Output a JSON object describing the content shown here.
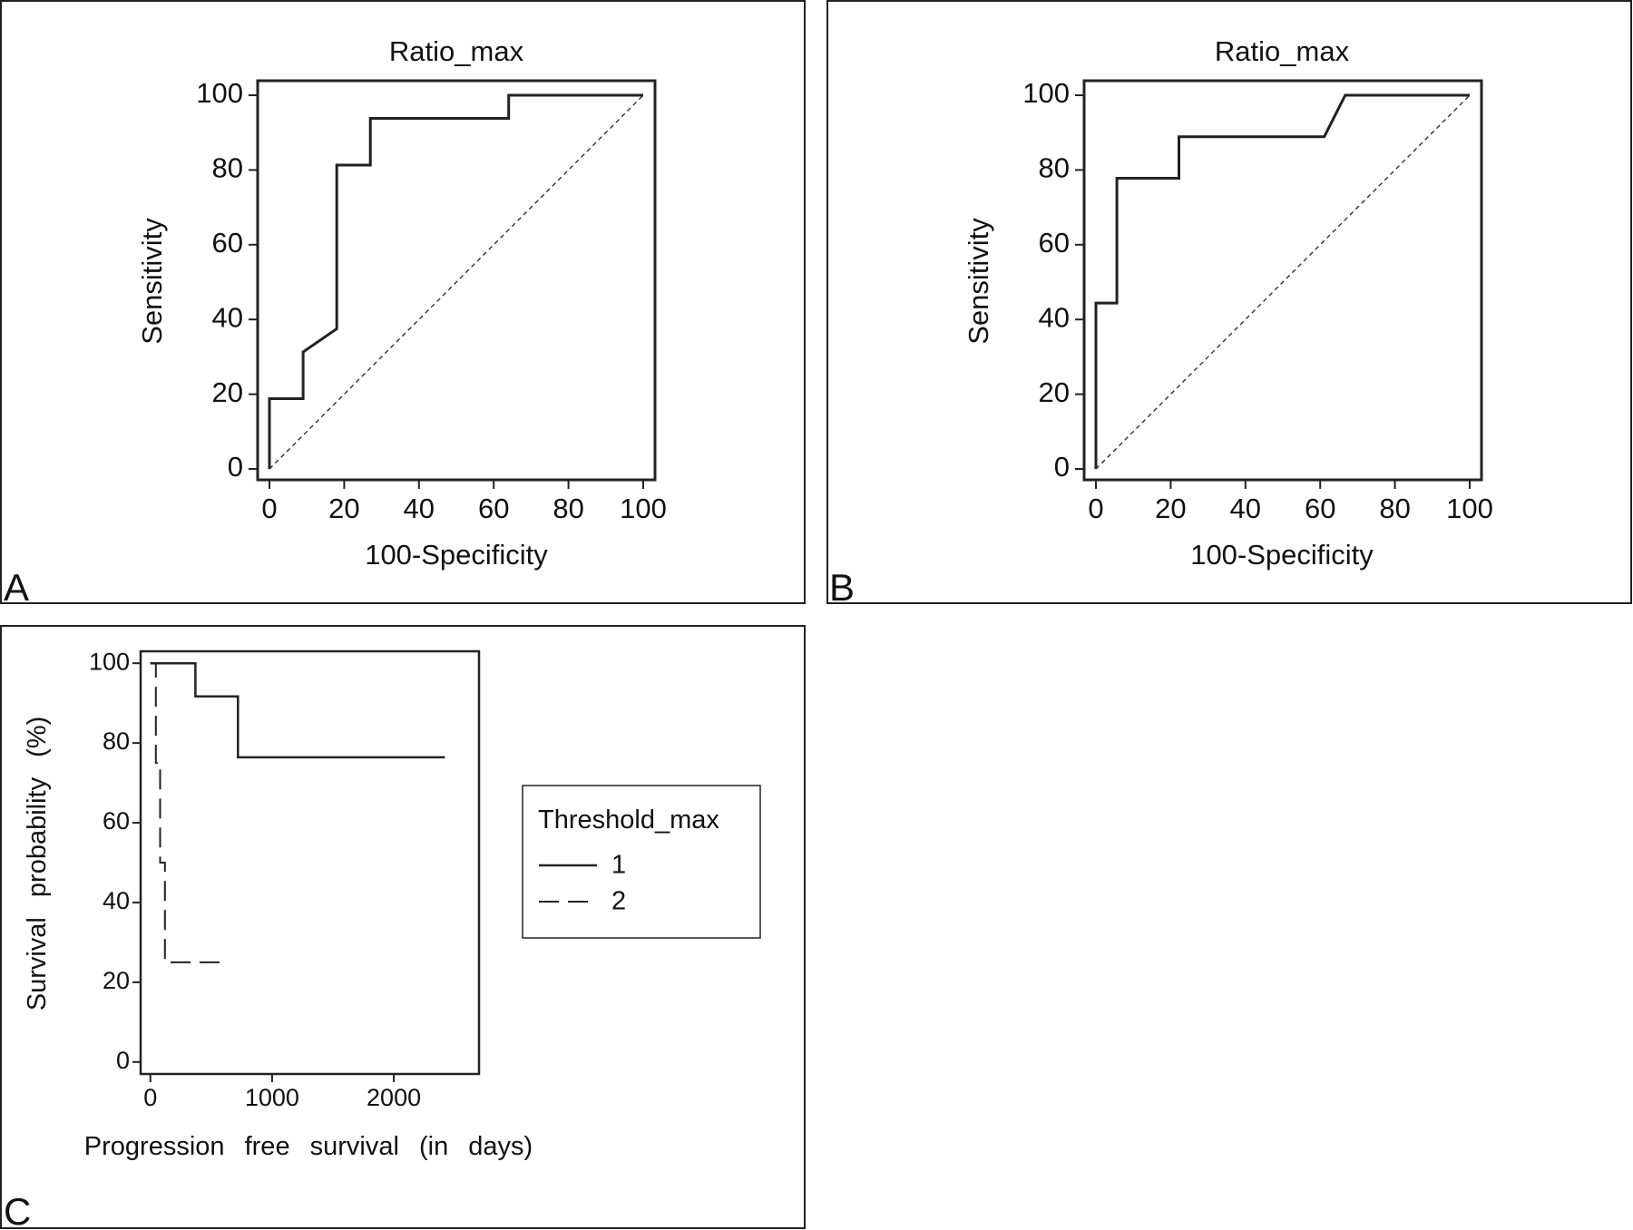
{
  "chart_data": [
    {
      "panel": "A",
      "type": "line",
      "title": "Ratio_max",
      "xlabel": "100-Specificity",
      "ylabel": "Sensitivity",
      "xlim": [
        0,
        100
      ],
      "ylim": [
        0,
        100
      ],
      "xticks": [
        "0",
        "20",
        "40",
        "60",
        "80",
        "100"
      ],
      "yticks": [
        "0",
        "20",
        "40",
        "60",
        "80",
        "100"
      ],
      "series": [
        {
          "style": "solid",
          "x": [
            0,
            0,
            9,
            9,
            18,
            18,
            27,
            27,
            64,
            64,
            100
          ],
          "y": [
            0,
            18.8,
            18.8,
            31.3,
            37.5,
            81.3,
            81.3,
            93.8,
            93.8,
            100,
            100
          ]
        },
        {
          "style": "dotted",
          "x": [
            0,
            100
          ],
          "y": [
            0,
            100
          ]
        }
      ],
      "grid": false
    },
    {
      "panel": "B",
      "type": "line",
      "title": "Ratio_max",
      "xlabel": "100-Specificity",
      "ylabel": "Sensitivity",
      "xlim": [
        0,
        100
      ],
      "ylim": [
        0,
        100
      ],
      "xticks": [
        "0",
        "20",
        "40",
        "60",
        "80",
        "100"
      ],
      "yticks": [
        "0",
        "20",
        "40",
        "60",
        "80",
        "100"
      ],
      "series": [
        {
          "style": "solid",
          "x": [
            0,
            0,
            5.6,
            5.6,
            22.2,
            22.2,
            61.1,
            66.7,
            100
          ],
          "y": [
            0,
            44.4,
            44.4,
            77.8,
            77.8,
            88.9,
            88.9,
            100,
            100
          ]
        },
        {
          "style": "dotted",
          "x": [
            0,
            100
          ],
          "y": [
            0,
            100
          ]
        }
      ],
      "grid": false
    },
    {
      "panel": "C",
      "type": "line",
      "xlabel": "Progression free survival (in days)",
      "ylabel": "Survival probability (%)",
      "xlim": [
        -80,
        2700
      ],
      "ylim": [
        -3,
        103
      ],
      "xticks": [
        "0",
        "1000",
        "2000"
      ],
      "yticks": [
        "0",
        "20",
        "40",
        "60",
        "80",
        "100"
      ],
      "legend": {
        "title": "Threshold_max",
        "placement": "right, outside"
      },
      "series": [
        {
          "name": "1",
          "style": "solid",
          "x": [
            0,
            370,
            370,
            720,
            720,
            2420
          ],
          "y": [
            100,
            100,
            91.7,
            91.7,
            76.4,
            76.4
          ]
        },
        {
          "name": "2",
          "style": "dashed",
          "x": [
            0,
            45,
            45,
            80,
            80,
            120,
            120,
            600
          ],
          "y": [
            100,
            100,
            75,
            75,
            50,
            50,
            25,
            25
          ]
        }
      ],
      "grid": false
    }
  ]
}
